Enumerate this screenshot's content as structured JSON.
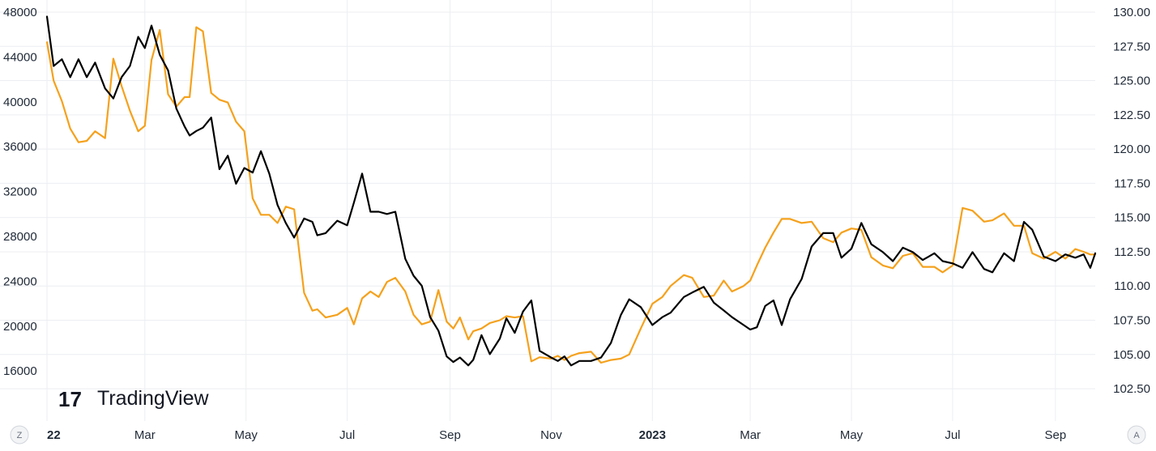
{
  "chart_data": {
    "type": "line",
    "title": "",
    "watermark": "TradingView",
    "logo_mark": "17",
    "corner_left": "Z",
    "corner_right": "A",
    "grid": true,
    "colors": {
      "series_black": "#000000",
      "series_orange": "#F5A11C",
      "grid": "#ECEEF2",
      "text": "#1f2937"
    },
    "x_ticks": [
      "22",
      "Mar",
      "May",
      "Jul",
      "Sep",
      "Nov",
      "2023",
      "Mar",
      "May",
      "Jul",
      "Sep"
    ],
    "x_tick_dates": [
      "2022-01-01",
      "2022-03-01",
      "2022-05-01",
      "2022-07-01",
      "2022-09-01",
      "2022-11-01",
      "2023-01-01",
      "2023-03-01",
      "2023-05-01",
      "2023-07-01",
      "2023-09-01"
    ],
    "x_range": [
      "2022-01-01",
      "2023-09-25"
    ],
    "y_left": {
      "ylim": [
        13200,
        48000
      ],
      "ticks": [
        "48000",
        "44000",
        "40000",
        "36000",
        "32000",
        "28000",
        "24000",
        "20000",
        "16000"
      ]
    },
    "y_right": {
      "ylim": [
        101.5,
        130.0
      ],
      "ticks": [
        "130.00",
        "127.50",
        "125.00",
        "122.50",
        "120.00",
        "117.50",
        "115.00",
        "112.50",
        "110.00",
        "107.50",
        "105.00",
        "102.50"
      ]
    },
    "series": [
      {
        "color": "#000000",
        "axis": "left",
        "x": [
          "2022-01-01",
          "2022-01-05",
          "2022-01-10",
          "2022-01-15",
          "2022-01-20",
          "2022-01-25",
          "2022-01-30",
          "2022-02-05",
          "2022-02-10",
          "2022-02-15",
          "2022-02-20",
          "2022-02-25",
          "2022-03-01",
          "2022-03-05",
          "2022-03-10",
          "2022-03-15",
          "2022-03-20",
          "2022-03-25",
          "2022-03-28",
          "2022-04-01",
          "2022-04-05",
          "2022-04-10",
          "2022-04-15",
          "2022-04-20",
          "2022-04-25",
          "2022-04-30",
          "2022-05-05",
          "2022-05-10",
          "2022-05-15",
          "2022-05-20",
          "2022-05-25",
          "2022-05-30",
          "2022-06-05",
          "2022-06-10",
          "2022-06-13",
          "2022-06-18",
          "2022-06-25",
          "2022-07-01",
          "2022-07-05",
          "2022-07-10",
          "2022-07-15",
          "2022-07-20",
          "2022-07-25",
          "2022-07-30",
          "2022-08-05",
          "2022-08-10",
          "2022-08-15",
          "2022-08-20",
          "2022-08-25",
          "2022-08-30",
          "2022-09-03",
          "2022-09-07",
          "2022-09-12",
          "2022-09-15",
          "2022-09-20",
          "2022-09-25",
          "2022-10-01",
          "2022-10-05",
          "2022-10-10",
          "2022-10-15",
          "2022-10-20",
          "2022-10-25",
          "2022-11-01",
          "2022-11-05",
          "2022-11-09",
          "2022-11-13",
          "2022-11-18",
          "2022-11-25",
          "2022-12-01",
          "2022-12-07",
          "2022-12-13",
          "2022-12-18",
          "2022-12-25",
          "2023-01-01",
          "2023-01-07",
          "2023-01-12",
          "2023-01-20",
          "2023-01-25",
          "2023-02-01",
          "2023-02-07",
          "2023-02-13",
          "2023-02-18",
          "2023-02-25",
          "2023-03-01",
          "2023-03-05",
          "2023-03-10",
          "2023-03-15",
          "2023-03-20",
          "2023-03-25",
          "2023-04-01",
          "2023-04-07",
          "2023-04-14",
          "2023-04-20",
          "2023-04-25",
          "2023-05-01",
          "2023-05-07",
          "2023-05-13",
          "2023-05-20",
          "2023-05-26",
          "2023-06-01",
          "2023-06-07",
          "2023-06-13",
          "2023-06-20",
          "2023-06-25",
          "2023-07-01",
          "2023-07-07",
          "2023-07-13",
          "2023-07-20",
          "2023-07-25",
          "2023-08-01",
          "2023-08-07",
          "2023-08-13",
          "2023-08-18",
          "2023-08-25",
          "2023-09-01",
          "2023-09-07",
          "2023-09-13",
          "2023-09-18",
          "2023-09-22",
          "2023-09-25"
        ],
        "values": [
          47600,
          43200,
          43800,
          42200,
          43800,
          42200,
          43500,
          41200,
          40300,
          42200,
          43200,
          45800,
          44800,
          46800,
          44200,
          42800,
          39400,
          37800,
          37000,
          37400,
          37700,
          38600,
          34000,
          35200,
          32700,
          34100,
          33700,
          35600,
          33600,
          30800,
          29200,
          27900,
          29600,
          29300,
          28100,
          28300,
          29400,
          29000,
          31000,
          33600,
          30200,
          30200,
          30000,
          30200,
          26000,
          24500,
          23600,
          20800,
          19600,
          17300,
          16800,
          17200,
          16500,
          17000,
          19200,
          17500,
          18900,
          20700,
          19400,
          21300,
          22300,
          17800,
          17200,
          16900,
          17300,
          16500,
          16900,
          16900,
          17200,
          18500,
          21000,
          22400,
          21700,
          20100,
          20800,
          21200,
          22600,
          23000,
          23500,
          22100,
          21400,
          20800,
          20100,
          19700,
          19900,
          21800,
          22300,
          20100,
          22400,
          24200,
          27100,
          28300,
          28300,
          26100,
          26900,
          29200,
          27300,
          26600,
          25800,
          27000,
          26600,
          25900,
          26500,
          25800,
          25600,
          25200,
          26600,
          25100,
          24800,
          26500,
          25800,
          29300,
          28600,
          26200,
          25800,
          26400,
          26100,
          26400,
          25200,
          26500
        ],
        "values_note_removed": true
      },
      {
        "color": "#F5A11C",
        "axis": "right",
        "x": [
          "2022-01-01",
          "2022-01-05",
          "2022-01-10",
          "2022-01-15",
          "2022-01-20",
          "2022-01-25",
          "2022-01-30",
          "2022-02-05",
          "2022-02-10",
          "2022-02-15",
          "2022-02-20",
          "2022-02-25",
          "2022-03-01",
          "2022-03-05",
          "2022-03-10",
          "2022-03-15",
          "2022-03-20",
          "2022-03-25",
          "2022-03-28",
          "2022-04-01",
          "2022-04-05",
          "2022-04-10",
          "2022-04-15",
          "2022-04-20",
          "2022-04-25",
          "2022-04-30",
          "2022-05-05",
          "2022-05-10",
          "2022-05-15",
          "2022-05-20",
          "2022-05-25",
          "2022-05-30",
          "2022-06-05",
          "2022-06-10",
          "2022-06-13",
          "2022-06-18",
          "2022-06-25",
          "2022-07-01",
          "2022-07-05",
          "2022-07-10",
          "2022-07-15",
          "2022-07-20",
          "2022-07-25",
          "2022-07-30",
          "2022-08-05",
          "2022-08-10",
          "2022-08-15",
          "2022-08-20",
          "2022-08-25",
          "2022-08-30",
          "2022-09-03",
          "2022-09-07",
          "2022-09-12",
          "2022-09-15",
          "2022-09-20",
          "2022-09-25",
          "2022-10-01",
          "2022-10-05",
          "2022-10-10",
          "2022-10-15",
          "2022-10-20",
          "2022-10-25",
          "2022-11-01",
          "2022-11-05",
          "2022-11-09",
          "2022-11-13",
          "2022-11-18",
          "2022-11-25",
          "2022-12-01",
          "2022-12-07",
          "2022-12-13",
          "2022-12-18",
          "2022-12-25",
          "2023-01-01",
          "2023-01-07",
          "2023-01-12",
          "2023-01-20",
          "2023-01-25",
          "2023-02-01",
          "2023-02-07",
          "2023-02-13",
          "2023-02-18",
          "2023-02-25",
          "2023-03-01",
          "2023-03-05",
          "2023-03-10",
          "2023-03-15",
          "2023-03-20",
          "2023-03-25",
          "2023-04-01",
          "2023-04-07",
          "2023-04-14",
          "2023-04-20",
          "2023-04-25",
          "2023-05-01",
          "2023-05-07",
          "2023-05-13",
          "2023-05-20",
          "2023-05-26",
          "2023-06-01",
          "2023-06-07",
          "2023-06-13",
          "2023-06-20",
          "2023-06-25",
          "2023-07-01",
          "2023-07-07",
          "2023-07-13",
          "2023-07-20",
          "2023-07-25",
          "2023-08-01",
          "2023-08-07",
          "2023-08-13",
          "2023-08-18",
          "2023-08-25",
          "2023-09-01",
          "2023-09-07",
          "2023-09-13",
          "2023-09-18",
          "2023-09-22",
          "2023-09-25"
        ],
        "values": [
          127.8,
          125.0,
          123.5,
          121.5,
          120.5,
          120.6,
          121.3,
          120.8,
          126.6,
          124.6,
          122.8,
          121.3,
          121.7,
          126.5,
          128.7,
          124.0,
          123.1,
          123.8,
          123.8,
          128.9,
          128.6,
          124.1,
          123.6,
          123.4,
          122.0,
          121.3,
          116.4,
          115.2,
          115.2,
          114.6,
          115.8,
          115.6,
          109.5,
          108.2,
          108.3,
          107.7,
          107.9,
          108.4,
          107.2,
          109.1,
          109.6,
          109.2,
          110.3,
          110.6,
          109.6,
          107.9,
          107.2,
          107.4,
          109.7,
          107.4,
          106.9,
          107.7,
          106.1,
          106.7,
          106.9,
          107.3,
          107.5,
          107.8,
          107.7,
          107.8,
          104.5,
          104.8,
          104.7,
          104.9,
          104.6,
          104.9,
          105.1,
          105.2,
          104.4,
          104.6,
          104.7,
          105.0,
          106.9,
          108.7,
          109.2,
          110.0,
          110.8,
          110.6,
          109.2,
          109.3,
          110.4,
          109.6,
          110.0,
          110.4,
          111.5,
          112.8,
          113.9,
          114.9,
          114.9,
          114.6,
          114.7,
          113.5,
          113.2,
          113.9,
          114.2,
          114.1,
          112.1,
          111.5,
          111.3,
          112.2,
          112.4,
          111.4,
          111.4,
          111.0,
          111.5,
          115.7,
          115.5,
          114.7,
          114.8,
          115.3,
          114.4,
          114.4,
          112.4,
          112.0,
          112.5,
          112.0,
          112.7,
          112.5,
          112.3,
          112.3
        ]
      }
    ]
  }
}
